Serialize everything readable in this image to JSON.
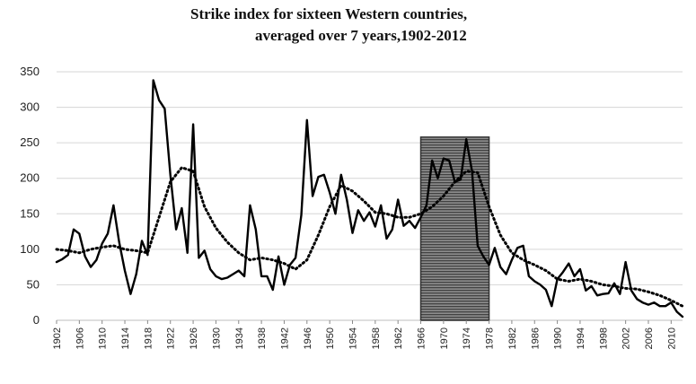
{
  "chart_data": {
    "type": "line",
    "title": "Strike index for sixteen Western countries,",
    "subtitle": "averaged over 7 years,1902-2012",
    "xlabel": "",
    "ylabel": "",
    "ylim": [
      0,
      350
    ],
    "xlim": [
      1902,
      2012
    ],
    "yticks": [
      "0",
      "50",
      "100",
      "150",
      "200",
      "250",
      "300",
      "350"
    ],
    "xticks": [
      "1902",
      "1906",
      "1910",
      "1914",
      "1918",
      "1922",
      "1926",
      "1930",
      "1934",
      "1938",
      "1942",
      "1946",
      "1950",
      "1954",
      "1958",
      "1962",
      "1966",
      "1970",
      "1974",
      "1978",
      "1982",
      "1986",
      "1990",
      "1994",
      "1998",
      "2002",
      "2006",
      "2010"
    ],
    "grid": "horizontal",
    "shaded_period": [
      1966,
      1978
    ],
    "series": [
      {
        "style": "solid",
        "x": [
          1902,
          1903,
          1904,
          1905,
          1906,
          1907,
          1908,
          1909,
          1910,
          1911,
          1912,
          1913,
          1914,
          1915,
          1916,
          1917,
          1918,
          1919,
          1920,
          1921,
          1922,
          1923,
          1924,
          1925,
          1926,
          1927,
          1928,
          1929,
          1930,
          1931,
          1932,
          1933,
          1934,
          1935,
          1936,
          1937,
          1938,
          1939,
          1940,
          1941,
          1942,
          1943,
          1944,
          1945,
          1946,
          1947,
          1948,
          1949,
          1950,
          1951,
          1952,
          1953,
          1954,
          1955,
          1956,
          1957,
          1958,
          1959,
          1960,
          1961,
          1962,
          1963,
          1964,
          1965,
          1966,
          1967,
          1968,
          1969,
          1970,
          1971,
          1972,
          1973,
          1974,
          1975,
          1976,
          1977,
          1978,
          1979,
          1980,
          1981,
          1982,
          1983,
          1984,
          1985,
          1986,
          1987,
          1988,
          1989,
          1990,
          1991,
          1992,
          1993,
          1994,
          1995,
          1996,
          1997,
          1998,
          1999,
          2000,
          2001,
          2002,
          2003,
          2004,
          2005,
          2006,
          2007,
          2008,
          2009,
          2010,
          2011,
          2012
        ],
        "values": [
          82,
          86,
          92,
          128,
          122,
          90,
          75,
          85,
          108,
          122,
          162,
          110,
          70,
          37,
          65,
          112,
          92,
          338,
          310,
          298,
          205,
          128,
          158,
          95,
          276,
          88,
          98,
          72,
          62,
          58,
          60,
          65,
          70,
          62,
          162,
          128,
          62,
          62,
          43,
          90,
          50,
          78,
          88,
          148,
          282,
          175,
          202,
          205,
          180,
          150,
          205,
          170,
          123,
          155,
          140,
          152,
          132,
          162,
          115,
          128,
          170,
          133,
          140,
          130,
          145,
          162,
          225,
          200,
          228,
          225,
          195,
          198,
          255,
          210,
          105,
          90,
          78,
          102,
          75,
          65,
          85,
          102,
          105,
          62,
          55,
          50,
          43,
          20,
          58,
          68,
          80,
          62,
          72,
          42,
          48,
          35,
          37,
          38,
          52,
          37,
          82,
          42,
          30,
          25,
          22,
          25,
          20,
          20,
          25,
          12,
          5
        ]
      },
      {
        "style": "dotted",
        "x": [
          1902,
          1904,
          1906,
          1908,
          1910,
          1912,
          1914,
          1916,
          1918,
          1920,
          1922,
          1924,
          1926,
          1928,
          1930,
          1932,
          1934,
          1936,
          1938,
          1940,
          1942,
          1944,
          1946,
          1948,
          1950,
          1952,
          1954,
          1956,
          1958,
          1960,
          1962,
          1964,
          1966,
          1968,
          1970,
          1972,
          1974,
          1976,
          1978,
          1980,
          1982,
          1984,
          1986,
          1988,
          1990,
          1992,
          1994,
          1996,
          1998,
          2000,
          2002,
          2004,
          2006,
          2008,
          2010,
          2012
        ],
        "values": [
          100,
          98,
          95,
          100,
          103,
          105,
          100,
          98,
          95,
          145,
          195,
          215,
          210,
          160,
          130,
          110,
          95,
          85,
          88,
          85,
          80,
          72,
          85,
          120,
          160,
          190,
          182,
          168,
          152,
          150,
          145,
          145,
          150,
          160,
          175,
          195,
          210,
          208,
          160,
          120,
          95,
          85,
          78,
          70,
          58,
          55,
          58,
          55,
          50,
          48,
          45,
          44,
          40,
          35,
          28,
          20
        ]
      }
    ]
  }
}
